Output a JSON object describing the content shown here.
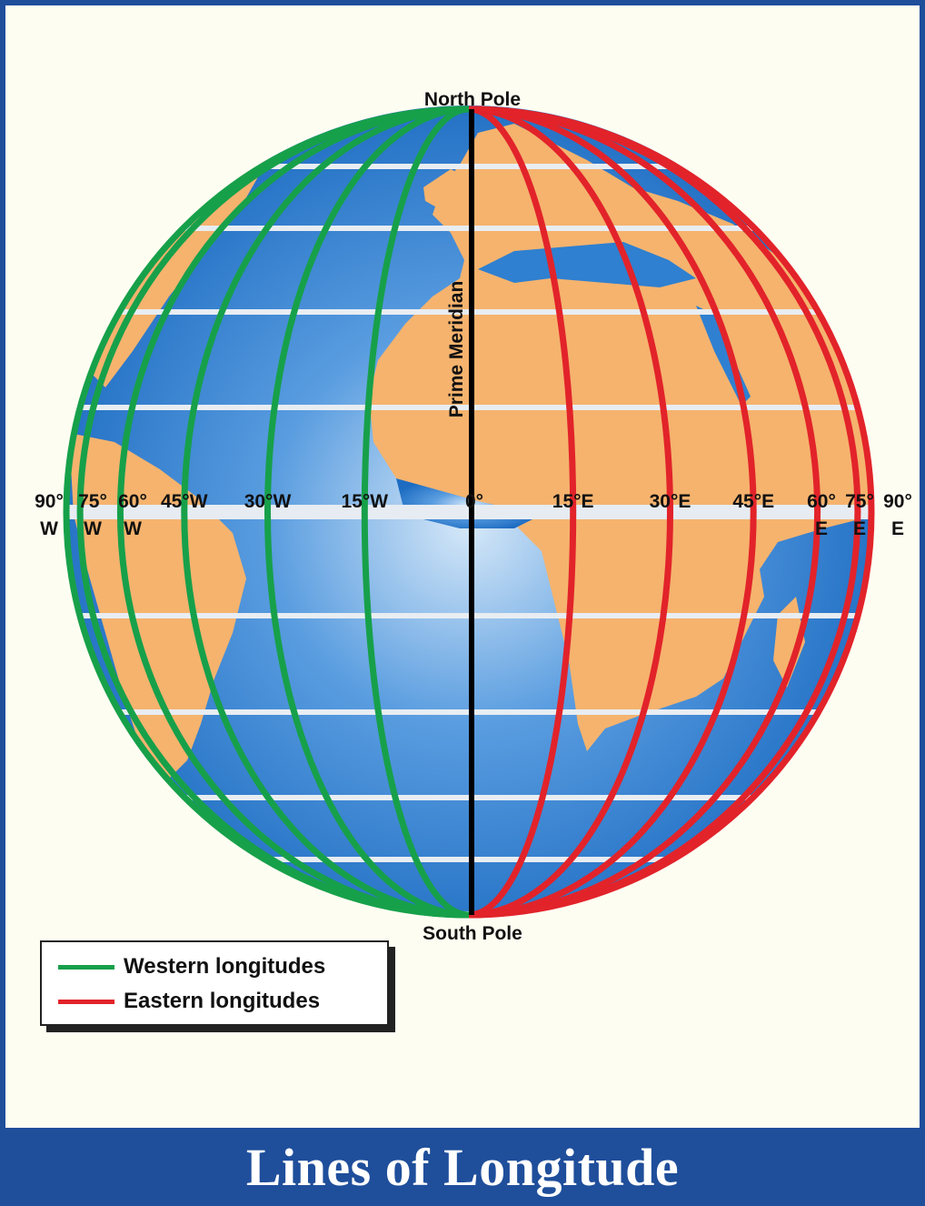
{
  "title": "Lines of Longitude",
  "poles": {
    "north": "North Pole",
    "south": "South Pole"
  },
  "prime_meridian": "Prime Meridian",
  "colors": {
    "western": "#17a04a",
    "eastern": "#e2232a",
    "prime": "#000000",
    "ocean": "#2f80d0",
    "land": "#f5b36e",
    "background": "#fefdf2",
    "title_bar": "#1f4e9b"
  },
  "meridians": {
    "west": [
      {
        "deg": 15,
        "label": "15°W"
      },
      {
        "deg": 30,
        "label": "30°W"
      },
      {
        "deg": 45,
        "label": "45°W"
      },
      {
        "deg": 60,
        "label": "60°",
        "label2": "W"
      },
      {
        "deg": 75,
        "label": "75°",
        "label2": "W"
      },
      {
        "deg": 90,
        "label": "90°",
        "label2": "W"
      }
    ],
    "center": {
      "deg": 0,
      "label": "0°"
    },
    "east": [
      {
        "deg": 15,
        "label": "15°E"
      },
      {
        "deg": 30,
        "label": "30°E"
      },
      {
        "deg": 45,
        "label": "45°E"
      },
      {
        "deg": 60,
        "label": "60°",
        "label2": "E"
      },
      {
        "deg": 75,
        "label": "75°",
        "label2": "E"
      },
      {
        "deg": 90,
        "label": "90°",
        "label2": "E"
      }
    ]
  },
  "legend": {
    "items": [
      {
        "label": "Western longitudes",
        "color": "#17a04a"
      },
      {
        "label": "Eastern longitudes",
        "color": "#e2232a"
      }
    ]
  }
}
